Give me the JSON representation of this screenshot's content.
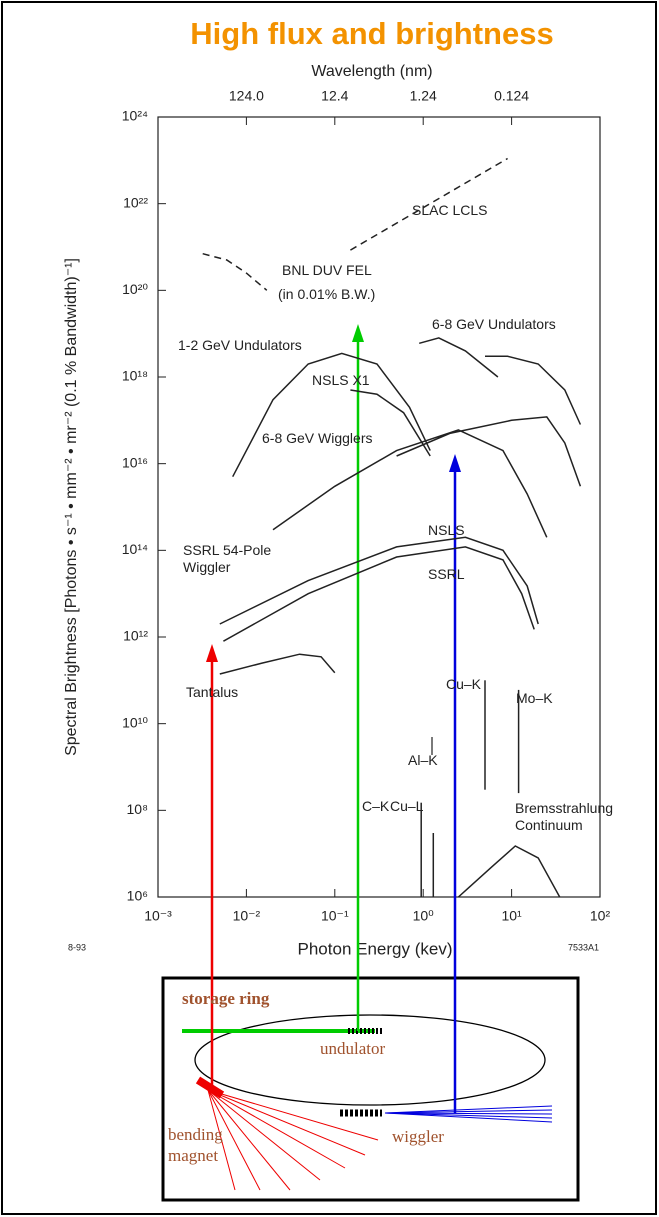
{
  "chart_data": {
    "type": "line",
    "title": "High flux and brightness",
    "x_label": "Photon Energy (kev)",
    "y_label": "Spectral Brightness [Photons • s⁻¹ • mm⁻² • mr⁻² (0.1 % Bandwidth)⁻¹]",
    "x2_label": "Wavelength (nm)",
    "xscale": "log",
    "yscale": "log",
    "xlim": [
      0.001,
      100
    ],
    "ylim": [
      1000000.0,
      1e+24
    ],
    "x2lim": [
      1240,
      0.0124
    ],
    "xticks": [
      {
        "value": 0.001,
        "label": "10⁻³"
      },
      {
        "value": 0.01,
        "label": "10⁻²"
      },
      {
        "value": 0.1,
        "label": "10⁻¹"
      },
      {
        "value": 1,
        "label": "10⁰"
      },
      {
        "value": 10,
        "label": "10¹"
      },
      {
        "value": 100,
        "label": "10²"
      }
    ],
    "yticks": [
      {
        "value": 1000000.0,
        "label": "10⁶"
      },
      {
        "value": 100000000.0,
        "label": "10⁸"
      },
      {
        "value": 10000000000.0,
        "label": "10¹⁰"
      },
      {
        "value": 1000000000000.0,
        "label": "10¹²"
      },
      {
        "value": 100000000000000.0,
        "label": "10¹⁴"
      },
      {
        "value": 1e+16,
        "label": "10¹⁶"
      },
      {
        "value": 1e+18,
        "label": "10¹⁸"
      },
      {
        "value": 1e+20,
        "label": "10²⁰"
      },
      {
        "value": 1e+22,
        "label": "10²²"
      },
      {
        "value": 1e+24,
        "label": "10²⁴"
      }
    ],
    "x2ticks": [
      {
        "value": 124,
        "label": "124.0"
      },
      12.4,
      1.24,
      0.124
    ],
    "series": [
      {
        "name": "SLAC LCLS",
        "color": "#222",
        "dashed": true,
        "x": [
          0.15,
          9
        ],
        "values": [
          8.5e+20,
          1.1e+23
        ]
      },
      {
        "name": "BNL DUV FEL",
        "color": "#222",
        "dashed": true,
        "x": [
          0.0032,
          0.006,
          0.01,
          0.017
        ],
        "values": [
          7e+20,
          5e+20,
          2.5e+20,
          1e+20
        ]
      },
      {
        "name": "1-2 GeV Undulators",
        "color": "#222",
        "x": [
          0.007,
          0.02,
          0.05,
          0.12,
          0.3,
          0.7,
          1.2
        ],
        "values": [
          5000000000000000.0,
          3e+17,
          2e+18,
          3.5e+18,
          2e+18,
          2e+17,
          2e+16
        ]
      },
      {
        "name": "NSLS X1",
        "color": "#222",
        "x": [
          0.15,
          0.3,
          0.6,
          1.2
        ],
        "values": [
          5e+17,
          4e+17,
          1.5e+17,
          1.5e+16
        ]
      },
      {
        "name": "6-8 GeV Undulators",
        "color": "#222",
        "x": [
          0.9,
          1.5,
          3,
          7,
          null,
          5,
          9,
          20,
          40,
          60
        ],
        "values": [
          6e+18,
          8e+18,
          4e+18,
          1e+18,
          null,
          3e+18,
          3e+18,
          2e+18,
          5e+17,
          8e+16
        ]
      },
      {
        "name": "6-8 GeV Wigglers",
        "color": "#222",
        "x": [
          0.02,
          0.1,
          0.5,
          2.5,
          8,
          15,
          25,
          null,
          0.5,
          2,
          10,
          25,
          40,
          60
        ],
        "values": [
          300000000000000.0,
          3000000000000000.0,
          2e+16,
          6e+16,
          2e+16,
          2000000000000000.0,
          200000000000000.0,
          null,
          1.5e+16,
          5e+16,
          1e+17,
          1.2e+17,
          3e+16,
          3000000000000000.0
        ]
      },
      {
        "name": "NSLS",
        "color": "#222",
        "x": [
          0.005,
          0.05,
          0.5,
          3,
          8,
          15,
          20
        ],
        "values": [
          2000000000000.0,
          20000000000000.0,
          120000000000000.0,
          200000000000000.0,
          100000000000000.0,
          15000000000000.0,
          2000000000000.0
        ]
      },
      {
        "name": "SSRL",
        "color": "#222",
        "x": [
          0.0055,
          0.05,
          0.5,
          3,
          8,
          13,
          18
        ],
        "values": [
          800000000000.0,
          10000000000000.0,
          70000000000000.0,
          120000000000000.0,
          60000000000000.0,
          10000000000000.0,
          1500000000000.0
        ]
      },
      {
        "name": "Tantalus",
        "color": "#222",
        "x": [
          0.005,
          0.015,
          0.04,
          0.07,
          0.1
        ],
        "values": [
          140000000000.0,
          250000000000.0,
          400000000000.0,
          350000000000.0,
          150000000000.0
        ]
      },
      {
        "name": "Bremsstrahlung Continuum",
        "color": "#222",
        "x": [
          2.5,
          6,
          11,
          20,
          35
        ],
        "values": [
          1000000.0,
          5000000.0,
          15000000.0,
          8000000.0,
          1000000.0
        ]
      },
      {
        "name": "Cu–K",
        "color": "#222",
        "x": [
          5,
          5
        ],
        "values": [
          300000000.0,
          100000000000.0
        ]
      },
      {
        "name": "Mo–K",
        "color": "#222",
        "x": [
          12,
          12
        ],
        "values": [
          250000000.0,
          60000000000.0
        ]
      },
      {
        "name": "Cu–L",
        "color": "#222",
        "x": [
          0.95,
          0.95
        ],
        "values": [
          1000000.0,
          150000000.0
        ]
      },
      {
        "name": "Al–K",
        "color": "#222",
        "x": [
          1.3,
          1.3
        ],
        "values": [
          1000000.0,
          30000000.0
        ]
      }
    ],
    "annotations": [
      "(in 0.01% B.W.)",
      "SSRL 54-Pole Wiggler",
      "C–K"
    ],
    "notes": [
      "8-93",
      "7533A1"
    ]
  },
  "diagram": {
    "labels": [
      "storage ring",
      "undulator",
      "wiggler",
      "bending magnet"
    ]
  }
}
